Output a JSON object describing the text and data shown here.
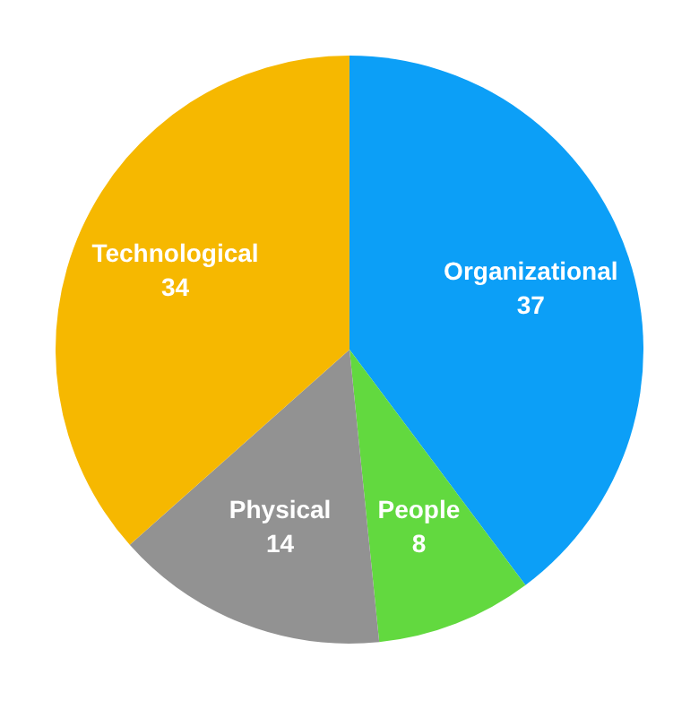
{
  "chart_data": {
    "type": "pie",
    "categories": [
      "Organizational",
      "People",
      "Physical",
      "Technological"
    ],
    "values": [
      37,
      8,
      14,
      34
    ],
    "colors": [
      "#0c9ff7",
      "#62d93f",
      "#929292",
      "#f6b800"
    ],
    "data_labels": true
  }
}
